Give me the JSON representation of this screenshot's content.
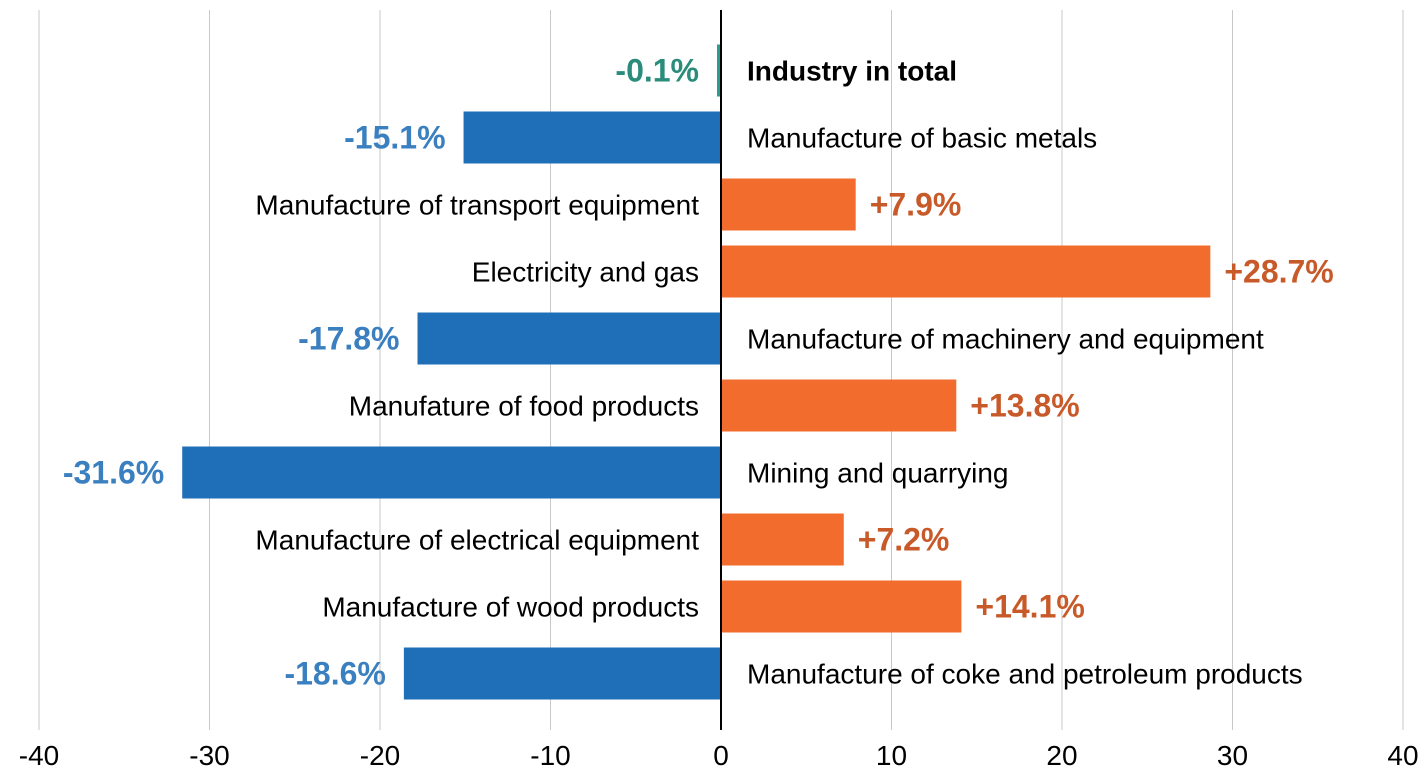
{
  "chart_data": {
    "type": "bar",
    "orientation": "horizontal",
    "title": "",
    "xlabel": "",
    "ylabel": "",
    "xlim": [
      -40,
      40
    ],
    "x_ticks": [
      "-40",
      "-30",
      "-20",
      "-10",
      "0",
      "10",
      "20",
      "30",
      "40"
    ],
    "grid": "vertical",
    "colors": {
      "negative": "#1f6fb8",
      "positive": "#f26d2d",
      "total": "#2a9d8f",
      "negative_label": "#3a7fbf",
      "positive_label": "#c85a2a",
      "total_label": "#2a8c7a",
      "gridline": "#c8c8c8",
      "axis": "#000000"
    },
    "categories": [
      "Industry in total",
      "Manufacture of basic metals",
      "Manufacture of transport equipment",
      "Electricity and gas",
      "Manufacture of machinery and equipment",
      "Manufature of food products",
      "Mining and quarrying",
      "Manufacture of electrical equipment",
      "Manufacture of wood products",
      "Manufacture of coke and petroleum products"
    ],
    "values": [
      -0.1,
      -15.1,
      7.9,
      28.7,
      -17.8,
      13.8,
      -31.6,
      7.2,
      14.1,
      -18.6
    ],
    "value_labels": [
      "-0.1%",
      "-15.1%",
      "+7.9%",
      "+28.7%",
      "-17.8%",
      "+13.8%",
      "-31.6%",
      "+7.2%",
      "+14.1%",
      "-18.6%"
    ],
    "highlight": "Industry in total"
  }
}
